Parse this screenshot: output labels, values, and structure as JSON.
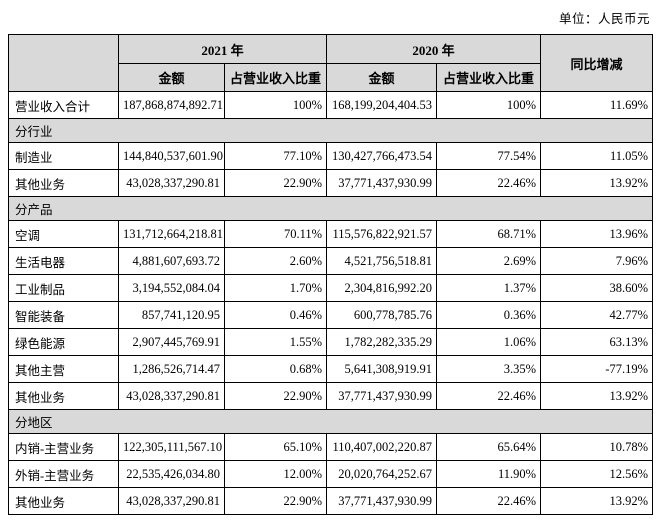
{
  "unit_label": "单位：人民币元",
  "table": {
    "header": {
      "year_2021": "2021 年",
      "year_2020": "2020 年",
      "amount": "金额",
      "ratio": "占营业收入比重",
      "yoy": "同比增减"
    },
    "rows": [
      {
        "type": "data",
        "label": "营业收入合计",
        "a2021": "187,868,874,892.71",
        "r2021": "100%",
        "a2020": "168,199,204,404.53",
        "r2020": "100%",
        "yoy": "11.69%"
      },
      {
        "type": "section",
        "label": "分行业"
      },
      {
        "type": "data",
        "label": "制造业",
        "a2021": "144,840,537,601.90",
        "r2021": "77.10%",
        "a2020": "130,427,766,473.54",
        "r2020": "77.54%",
        "yoy": "11.05%"
      },
      {
        "type": "data",
        "label": "其他业务",
        "a2021": "43,028,337,290.81",
        "r2021": "22.90%",
        "a2020": "37,771,437,930.99",
        "r2020": "22.46%",
        "yoy": "13.92%"
      },
      {
        "type": "section",
        "label": "分产品"
      },
      {
        "type": "data",
        "label": "空调",
        "a2021": "131,712,664,218.81",
        "r2021": "70.11%",
        "a2020": "115,576,822,921.57",
        "r2020": "68.71%",
        "yoy": "13.96%"
      },
      {
        "type": "data",
        "label": "生活电器",
        "a2021": "4,881,607,693.72",
        "r2021": "2.60%",
        "a2020": "4,521,756,518.81",
        "r2020": "2.69%",
        "yoy": "7.96%"
      },
      {
        "type": "data",
        "label": "工业制品",
        "a2021": "3,194,552,084.04",
        "r2021": "1.70%",
        "a2020": "2,304,816,992.20",
        "r2020": "1.37%",
        "yoy": "38.60%"
      },
      {
        "type": "data",
        "label": "智能装备",
        "a2021": "857,741,120.95",
        "r2021": "0.46%",
        "a2020": "600,778,785.76",
        "r2020": "0.36%",
        "yoy": "42.77%"
      },
      {
        "type": "data",
        "label": "绿色能源",
        "a2021": "2,907,445,769.91",
        "r2021": "1.55%",
        "a2020": "1,782,282,335.29",
        "r2020": "1.06%",
        "yoy": "63.13%"
      },
      {
        "type": "data",
        "label": "其他主营",
        "a2021": "1,286,526,714.47",
        "r2021": "0.68%",
        "a2020": "5,641,308,919.91",
        "r2020": "3.35%",
        "yoy": "-77.19%"
      },
      {
        "type": "data",
        "label": "其他业务",
        "a2021": "43,028,337,290.81",
        "r2021": "22.90%",
        "a2020": "37,771,437,930.99",
        "r2020": "22.46%",
        "yoy": "13.92%"
      },
      {
        "type": "section",
        "label": "分地区"
      },
      {
        "type": "data",
        "label": "内销-主营业务",
        "a2021": "122,305,111,567.10",
        "r2021": "65.10%",
        "a2020": "110,407,002,220.87",
        "r2020": "65.64%",
        "yoy": "10.78%"
      },
      {
        "type": "data",
        "label": "外销-主营业务",
        "a2021": "22,535,426,034.80",
        "r2021": "12.00%",
        "a2020": "20,020,764,252.67",
        "r2020": "11.90%",
        "yoy": "12.56%"
      },
      {
        "type": "data",
        "label": "其他业务",
        "a2021": "43,028,337,290.81",
        "r2021": "22.90%",
        "a2020": "37,771,437,930.99",
        "r2020": "22.46%",
        "yoy": "13.92%"
      }
    ]
  },
  "colors": {
    "header_bg": "#d9d9d9",
    "section_bg": "#d9d9d9",
    "border": "#000000",
    "text": "#000000",
    "page_bg": "#ffffff"
  }
}
